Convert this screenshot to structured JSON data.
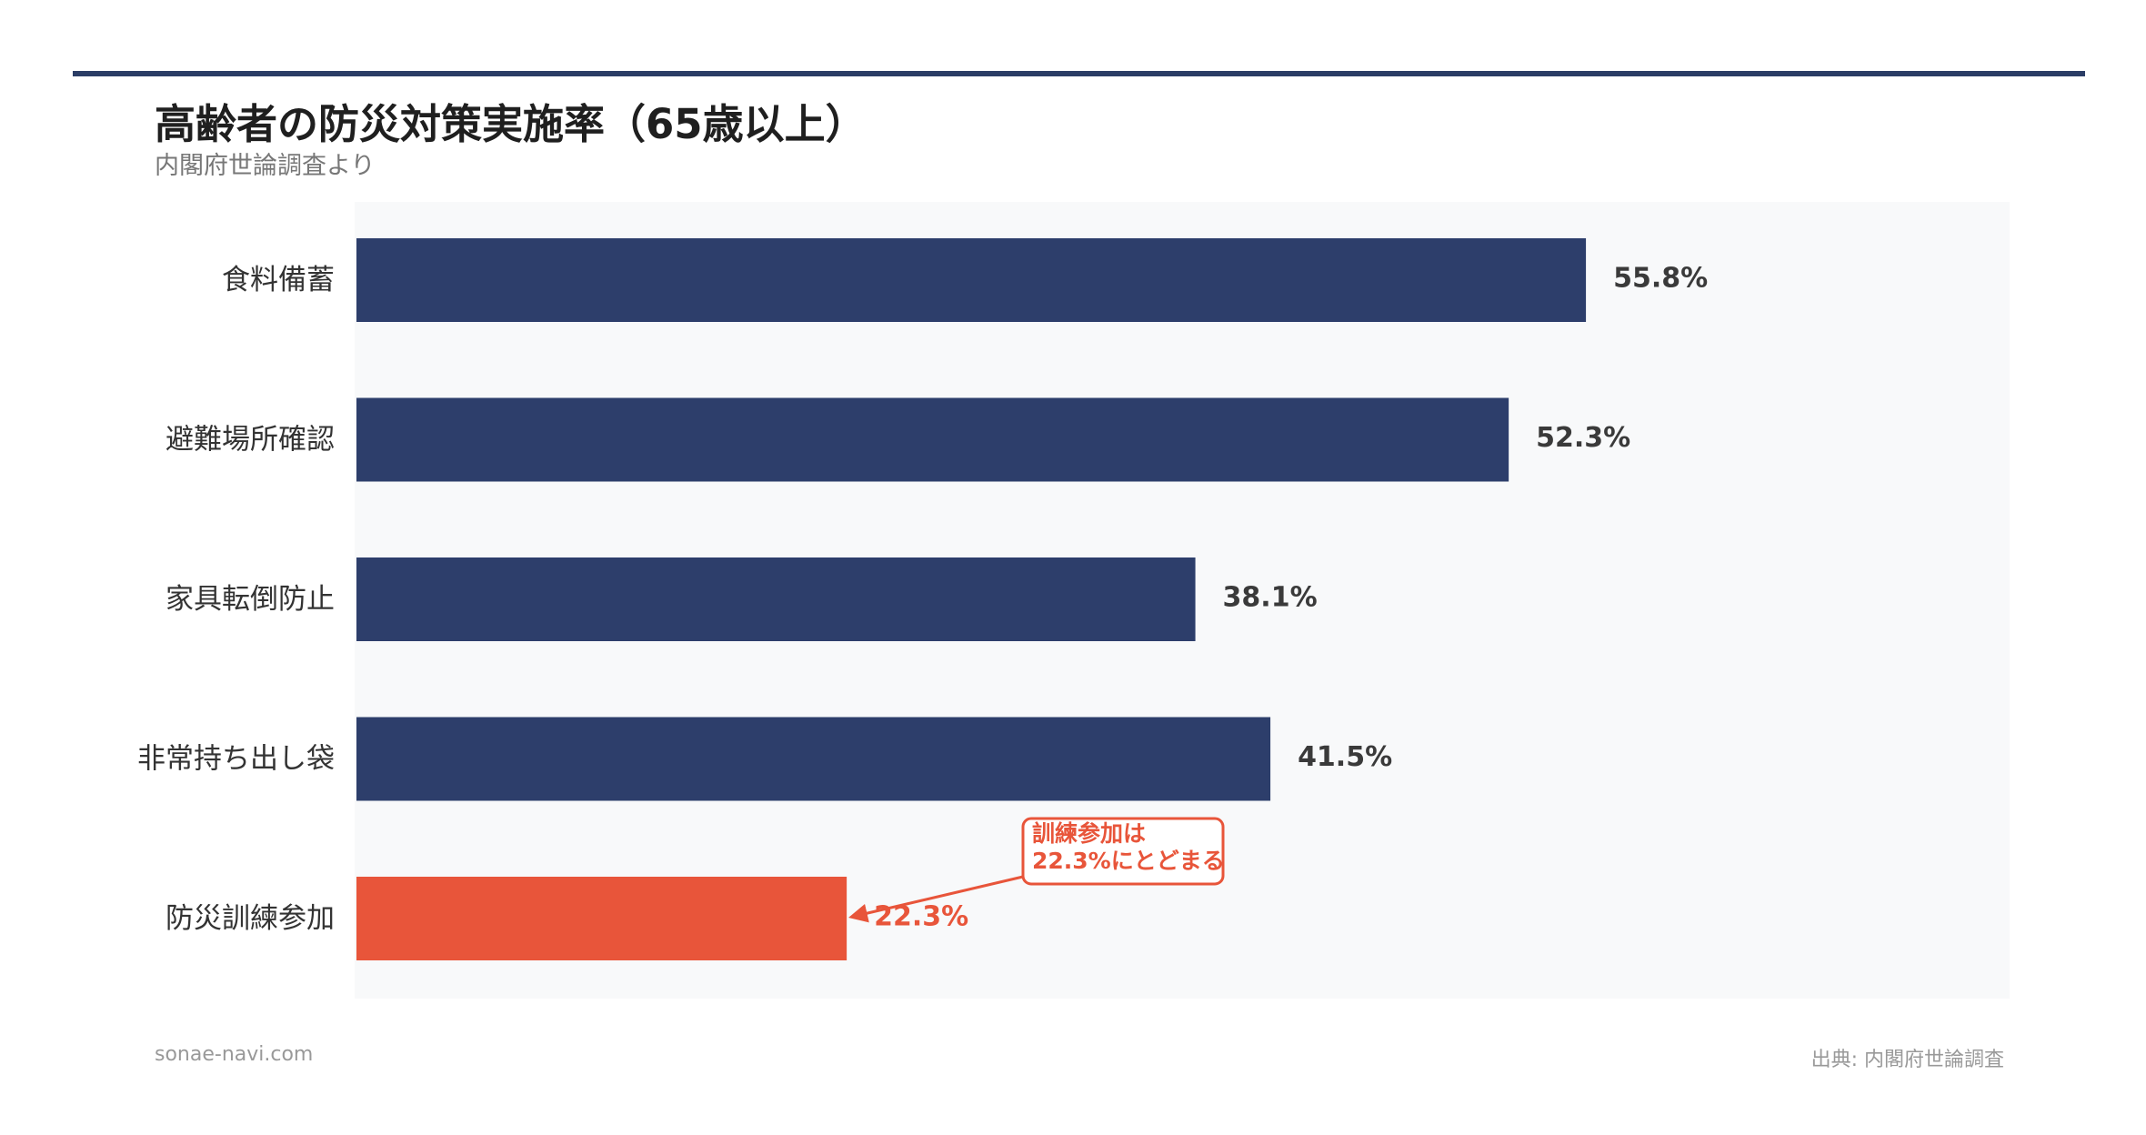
{
  "header": {
    "title": "高齢者の防災対策実施率（65歳以上）",
    "subtitle": "内閣府世論調査より"
  },
  "footer": {
    "site": "sonae-navi.com",
    "source": "出典: 内閣府世論調査"
  },
  "colors": {
    "bar": "#2d3e6b",
    "highlight": "#e8553a",
    "plot_bg": "#f8f9fa",
    "rule": "#2b3d66"
  },
  "chart_data": {
    "type": "bar",
    "orientation": "horizontal",
    "title": "高齢者の防災対策実施率（65歳以上）",
    "subtitle": "内閣府世論調査より",
    "categories": [
      "食料備蓄",
      "避難場所確認",
      "家具転倒防止",
      "非常持ち出し袋",
      "防災訓練参加"
    ],
    "values": [
      55.8,
      52.3,
      38.1,
      41.5,
      22.3
    ],
    "value_labels": [
      "55.8%",
      "52.3%",
      "38.1%",
      "41.5%",
      "22.3%"
    ],
    "highlight_index": 4,
    "xlim": [
      0,
      75
    ],
    "grid": false,
    "annotation": {
      "target_index": 4,
      "lines": [
        "訓練参加は",
        "22.3%にとどまる"
      ]
    }
  }
}
